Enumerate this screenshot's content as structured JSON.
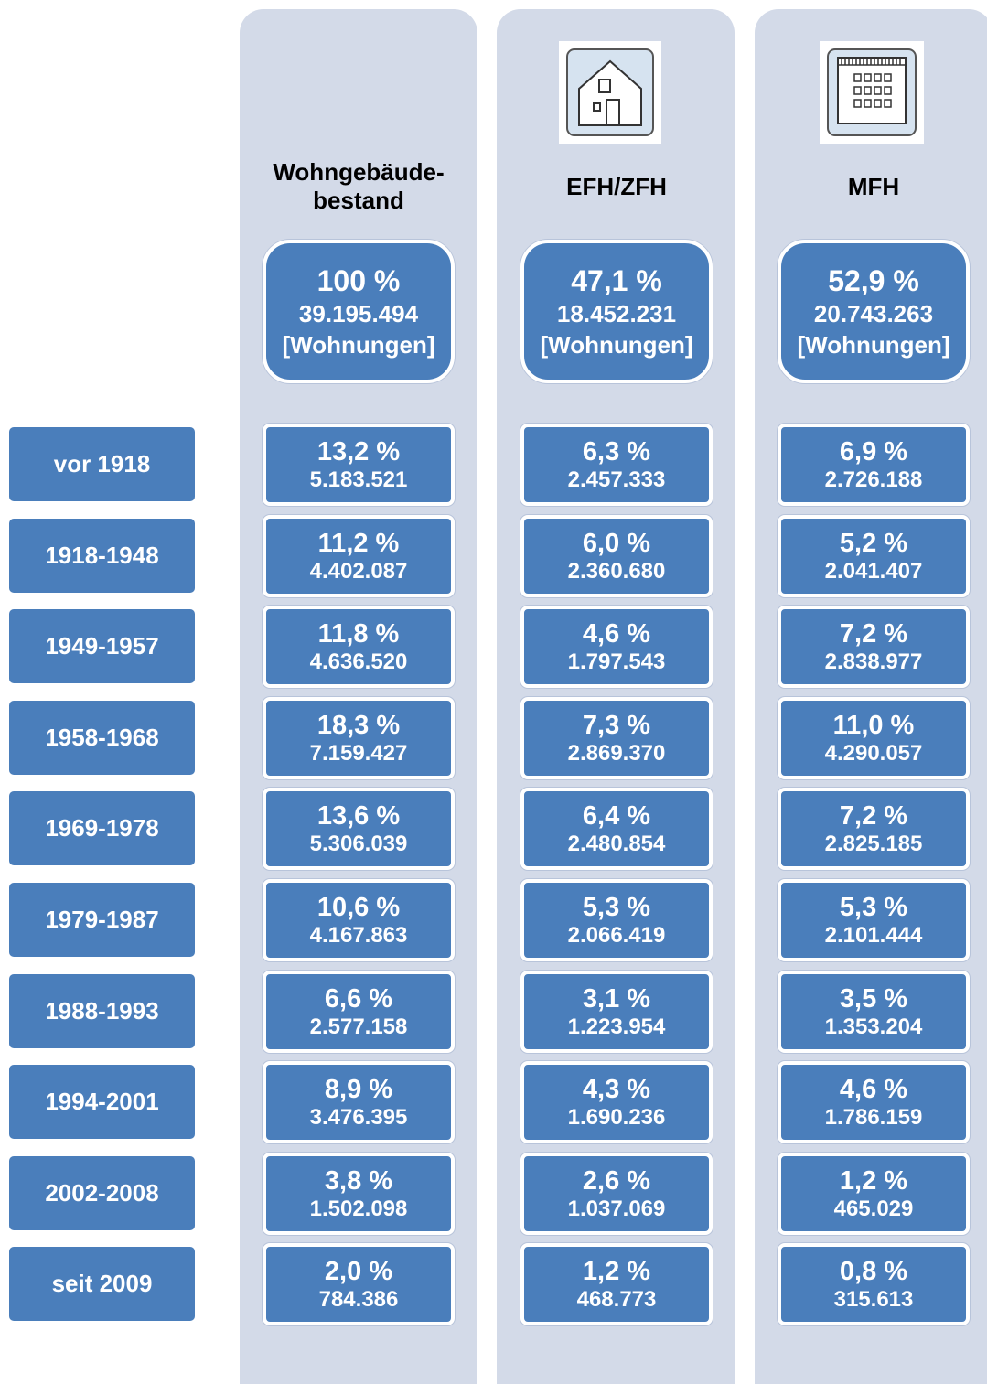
{
  "columns": [
    {
      "header": [
        "Wohngebäude-",
        "bestand"
      ],
      "total": {
        "percent": "100 %",
        "count": "39.195.494",
        "unit": "[Wohnungen]"
      }
    },
    {
      "header": [
        "EFH/ZFH"
      ],
      "total": {
        "percent": "47,1 %",
        "count": "18.452.231",
        "unit": "[Wohnungen]"
      }
    },
    {
      "header": [
        "MFH"
      ],
      "total": {
        "percent": "52,9 %",
        "count": "20.743.263",
        "unit": "[Wohnungen]"
      }
    }
  ],
  "rows": [
    {
      "period": "vor 1918",
      "cells": [
        {
          "percent": "13,2 %",
          "count": "5.183.521"
        },
        {
          "percent": "6,3 %",
          "count": "2.457.333"
        },
        {
          "percent": "6,9 %",
          "count": "2.726.188"
        }
      ]
    },
    {
      "period": "1918-1948",
      "cells": [
        {
          "percent": "11,2 %",
          "count": "4.402.087"
        },
        {
          "percent": "6,0 %",
          "count": "2.360.680"
        },
        {
          "percent": "5,2 %",
          "count": "2.041.407"
        }
      ]
    },
    {
      "period": "1949-1957",
      "cells": [
        {
          "percent": "11,8 %",
          "count": "4.636.520"
        },
        {
          "percent": "4,6 %",
          "count": "1.797.543"
        },
        {
          "percent": "7,2 %",
          "count": "2.838.977"
        }
      ]
    },
    {
      "period": "1958-1968",
      "cells": [
        {
          "percent": "18,3 %",
          "count": "7.159.427"
        },
        {
          "percent": "7,3 %",
          "count": "2.869.370"
        },
        {
          "percent": "11,0 %",
          "count": "4.290.057"
        }
      ]
    },
    {
      "period": "1969-1978",
      "cells": [
        {
          "percent": "13,6 %",
          "count": "5.306.039"
        },
        {
          "percent": "6,4 %",
          "count": "2.480.854"
        },
        {
          "percent": "7,2 %",
          "count": "2.825.185"
        }
      ]
    },
    {
      "period": "1979-1987",
      "cells": [
        {
          "percent": "10,6 %",
          "count": "4.167.863"
        },
        {
          "percent": "5,3 %",
          "count": "2.066.419"
        },
        {
          "percent": "5,3 %",
          "count": "2.101.444"
        }
      ]
    },
    {
      "period": "1988-1993",
      "cells": [
        {
          "percent": "6,6 %",
          "count": "2.577.158"
        },
        {
          "percent": "3,1 %",
          "count": "1.223.954"
        },
        {
          "percent": "3,5 %",
          "count": "1.353.204"
        }
      ]
    },
    {
      "period": "1994-2001",
      "cells": [
        {
          "percent": "8,9 %",
          "count": "3.476.395"
        },
        {
          "percent": "4,3 %",
          "count": "1.690.236"
        },
        {
          "percent": "4,6 %",
          "count": "1.786.159"
        }
      ]
    },
    {
      "period": "2002-2008",
      "cells": [
        {
          "percent": "3,8 %",
          "count": "1.502.098"
        },
        {
          "percent": "2,6 %",
          "count": "1.037.069"
        },
        {
          "percent": "1,2 %",
          "count": "465.029"
        }
      ]
    },
    {
      "period": "seit 2009",
      "cells": [
        {
          "percent": "2,0 %",
          "count": "784.386"
        },
        {
          "percent": "1,2 %",
          "count": "468.773"
        },
        {
          "percent": "0,8 %",
          "count": "315.613"
        }
      ]
    }
  ]
}
